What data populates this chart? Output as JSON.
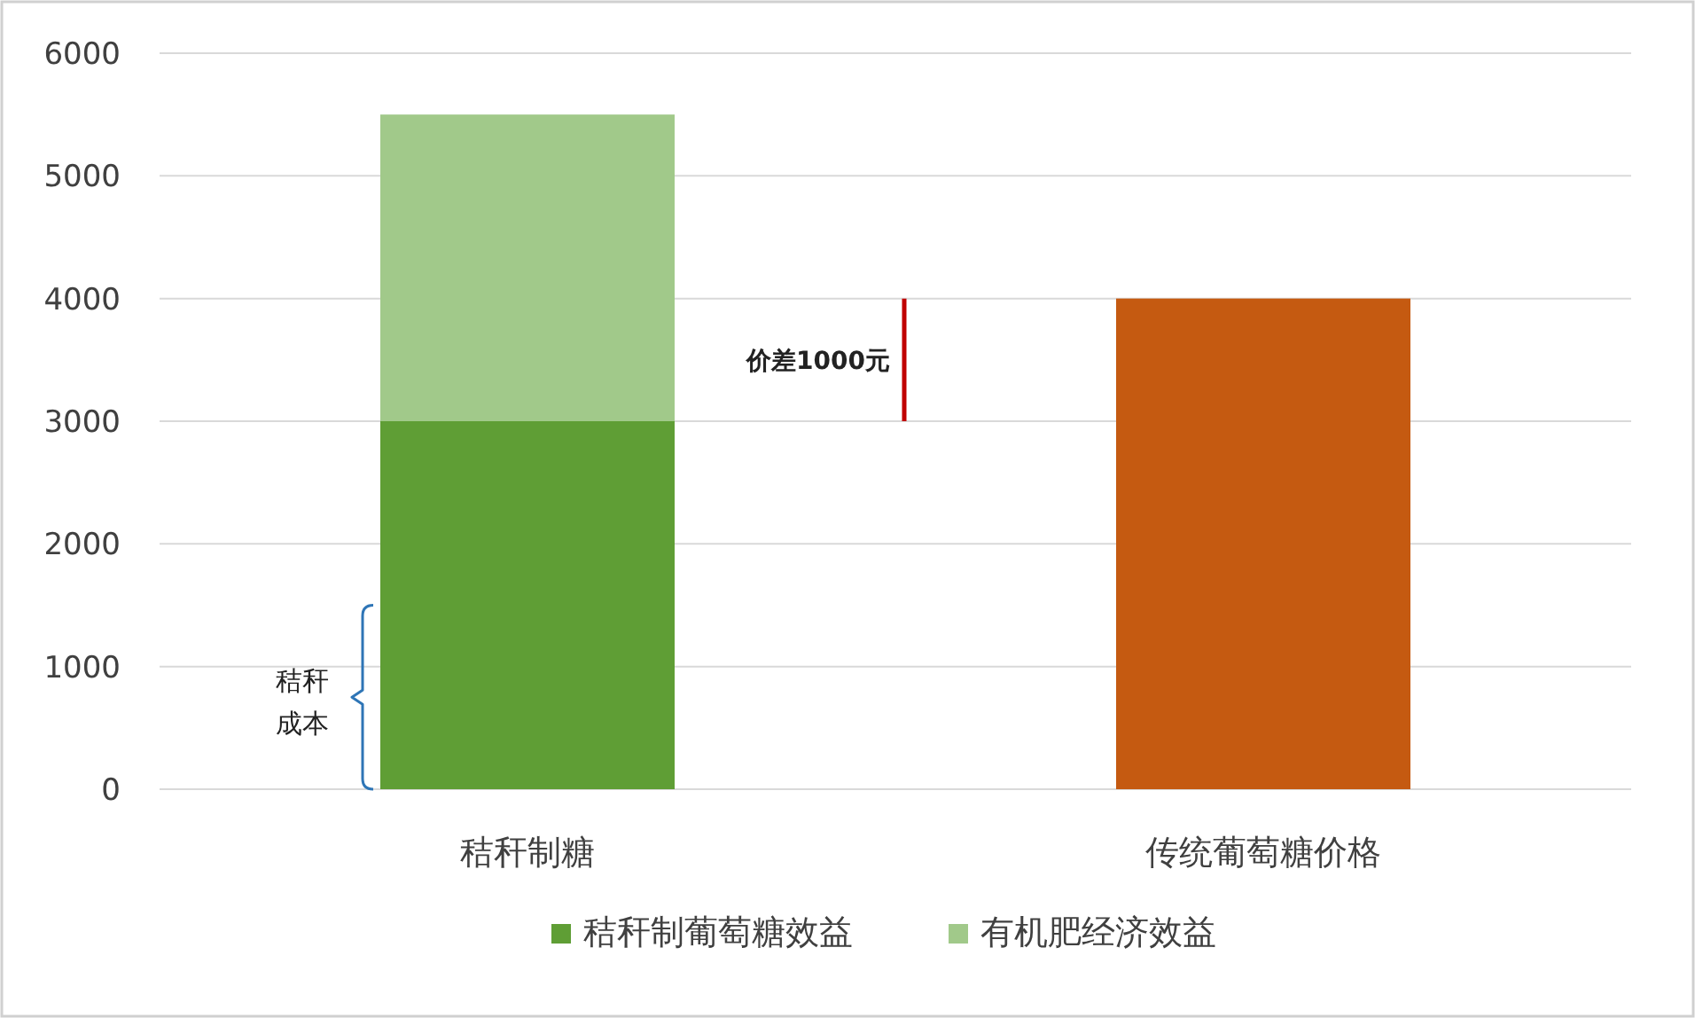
{
  "chart_data": {
    "type": "bar",
    "stacked": true,
    "categories": [
      "秸秆制糖",
      "传统葡萄糖价格"
    ],
    "series": [
      {
        "name": "秸秆制葡萄糖效益",
        "color": "#5f9e35",
        "values": [
          3000,
          null
        ]
      },
      {
        "name": "有机肥经济效益",
        "color": "#a1c98a",
        "values": [
          2500,
          null
        ]
      },
      {
        "color": "#c55a11",
        "values": [
          null,
          4000
        ]
      }
    ],
    "ylim": [
      0,
      6000
    ],
    "yticks": [
      0,
      1000,
      2000,
      3000,
      4000,
      5000,
      6000
    ],
    "grid": "y",
    "legend": "bottom",
    "annotations": [
      "秸秆成本",
      "价差1000元"
    ]
  }
}
